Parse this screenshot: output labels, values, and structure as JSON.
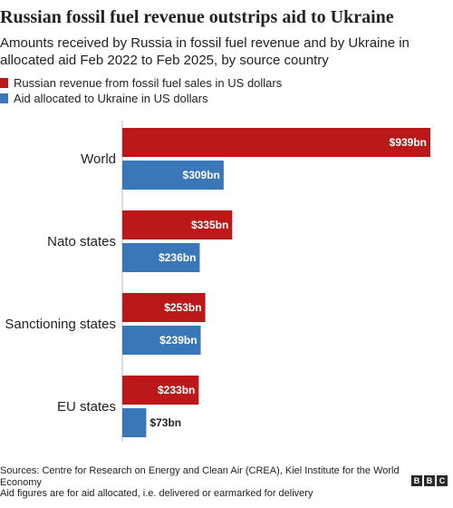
{
  "chart_data": {
    "type": "bar",
    "orientation": "horizontal",
    "title": "Russian fossil fuel revenue outstrips aid to Ukraine",
    "subtitle": "Amounts received by Russia in fossil fuel revenue and by Ukraine in allocated aid Feb 2022 to Feb 2025, by source country",
    "categories": [
      "World",
      "Nato states",
      "Sanctioning states",
      "EU states"
    ],
    "series": [
      {
        "name": "Russian revenue from fossil fuel sales in US dollars",
        "color": "#bb1919",
        "values": [
          939,
          335,
          253,
          233
        ],
        "labels": [
          "$939bn",
          "$335bn",
          "$253bn",
          "$233bn"
        ]
      },
      {
        "name": "Aid allocated to Ukraine in US dollars",
        "color": "#3a77b8",
        "values": [
          309,
          236,
          239,
          73
        ],
        "labels": [
          "$309bn",
          "$236bn",
          "$239bn",
          "$73bn"
        ]
      }
    ],
    "xlim": [
      0,
      939
    ],
    "grid": false,
    "legend_position": "top-left"
  },
  "sources": {
    "line1": "Sources: Centre for Research on Energy and Clean Air (CREA), Kiel Institute for the World Economy",
    "line2": "Aid figures are for aid allocated, i.e. delivered or earmarked for delivery"
  },
  "brand": [
    "B",
    "B",
    "C"
  ]
}
